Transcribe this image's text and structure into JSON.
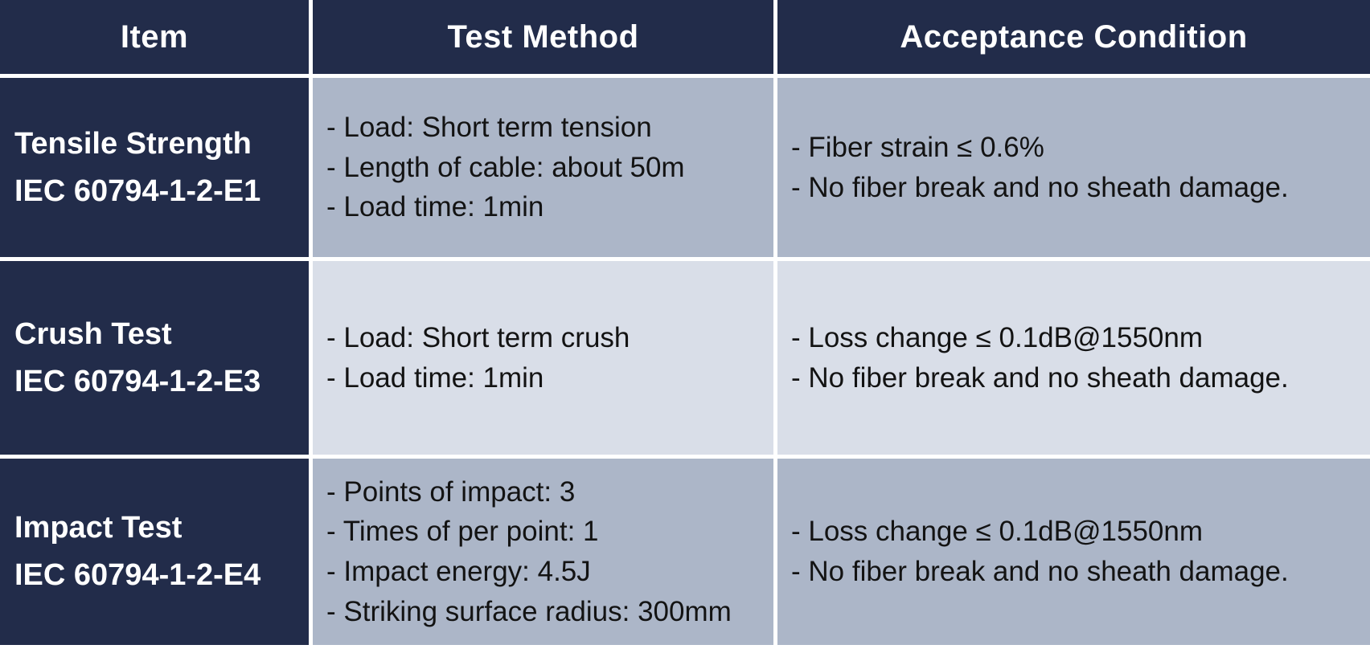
{
  "colors": {
    "header_bg": "#222C4A",
    "band_dark": "#ACB6C8",
    "band_light": "#D9DEE8",
    "border": "#FFFFFF",
    "header_text": "#FFFFFF",
    "body_text": "#131313"
  },
  "table": {
    "columns": [
      "Item",
      "Test Method",
      "Acceptance Condition"
    ],
    "rows": [
      {
        "item": [
          "Tensile Strength",
          "IEC 60794-1-2-E1"
        ],
        "method": [
          "- Load: Short term tension",
          "- Length of cable: about 50m",
          "- Load time: 1min"
        ],
        "acceptance": [
          "- Fiber strain ≤ 0.6%",
          "- No fiber break and no sheath damage."
        ]
      },
      {
        "item": [
          "Crush Test",
          "IEC 60794-1-2-E3"
        ],
        "method": [
          "- Load: Short term crush",
          "- Load time: 1min"
        ],
        "acceptance": [
          "- Loss change ≤ 0.1dB@1550nm",
          "- No fiber break and no sheath damage."
        ]
      },
      {
        "item": [
          "Impact Test",
          "IEC 60794-1-2-E4"
        ],
        "method": [
          "- Points of impact: 3",
          "- Times of per point: 1",
          "- Impact energy: 4.5J",
          "- Striking surface radius: 300mm"
        ],
        "acceptance": [
          "- Loss change ≤ 0.1dB@1550nm",
          "- No fiber break and no sheath damage."
        ]
      }
    ]
  }
}
